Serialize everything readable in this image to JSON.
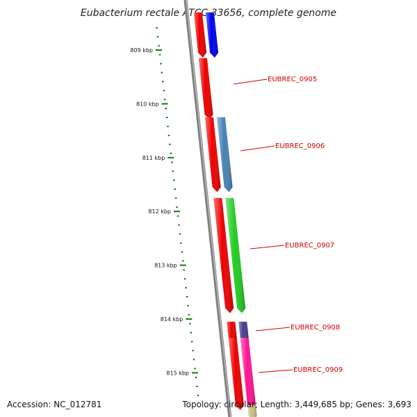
{
  "title": "Eubacterium rectale ATCC 33656, complete genome",
  "axis": {
    "ticks": [
      {
        "label": "809 kbp",
        "kbp": 809
      },
      {
        "label": "810 kbp",
        "kbp": 810
      },
      {
        "label": "811 kbp",
        "kbp": 811
      },
      {
        "label": "812 kbp",
        "kbp": 812
      },
      {
        "label": "813 kbp",
        "kbp": 813
      },
      {
        "label": "814 kbp",
        "kbp": 814
      },
      {
        "label": "815 kbp",
        "kbp": 815
      }
    ]
  },
  "genes": [
    {
      "label": "",
      "strand": "forward",
      "color": "#ee0000",
      "start_kbp": 808.3,
      "end_kbp": 809.05
    },
    {
      "label": "",
      "strand": "forward",
      "color": "#0000ee",
      "start_kbp": 808.3,
      "end_kbp": 809.05
    },
    {
      "label": "EUBREC_0905",
      "strand": "forward",
      "color": "#ee0000",
      "start_kbp": 809.15,
      "end_kbp": 810.2
    },
    {
      "label": "EUBREC_0906",
      "strand": "forward",
      "color": "#ee0000",
      "start_kbp": 810.25,
      "end_kbp": 811.55
    },
    {
      "label": "",
      "strand": "forward",
      "color": "#4682b4",
      "start_kbp": 810.25,
      "end_kbp": 811.55
    },
    {
      "label": "EUBREC_0907",
      "strand": "forward",
      "color": "#ee0000",
      "start_kbp": 811.75,
      "end_kbp": 813.8
    },
    {
      "label": "",
      "strand": "forward",
      "color": "#22cc22",
      "start_kbp": 811.75,
      "end_kbp": 813.8
    },
    {
      "label": "EUBREC_0908",
      "strand": "forward",
      "color": "#ee0000",
      "start_kbp": 814.05,
      "end_kbp": 814.35
    },
    {
      "label": "",
      "strand": "forward",
      "color": "#483d8b",
      "start_kbp": 814.05,
      "end_kbp": 814.35
    },
    {
      "label": "EUBREC_0909",
      "strand": "forward",
      "color": "#ee0000",
      "start_kbp": 814.35,
      "end_kbp": 815.6
    },
    {
      "label": "",
      "strand": "forward",
      "color": "#ff1493",
      "start_kbp": 814.35,
      "end_kbp": 815.6
    },
    {
      "label": "",
      "strand": "forward",
      "color": "#c8c080",
      "start_kbp": 815.6,
      "end_kbp": 815.8
    }
  ],
  "footer": {
    "accession": "Accession: NC_012781",
    "topology": "Topology: circular; Length: 3,449,685 bp; Genes: 3,693"
  },
  "colors": {
    "backbone": "#808080",
    "tick": "#117711",
    "label_line": "#cc0000"
  }
}
